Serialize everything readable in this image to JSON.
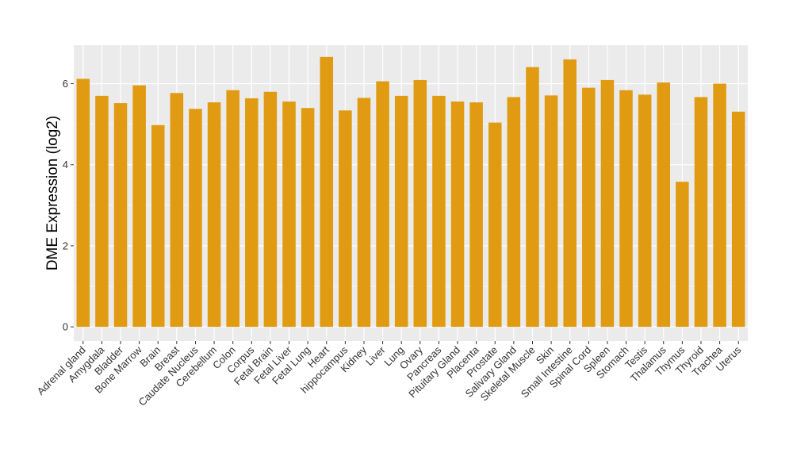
{
  "chart_data": {
    "type": "bar",
    "title": "",
    "xlabel": "",
    "ylabel": "DME Expression (log2)",
    "ylim": [
      -0.35,
      6.95
    ],
    "yticks": [
      0,
      2,
      4,
      6
    ],
    "grid": true,
    "bar_color": "#E09B12",
    "panel_color": "#EBEBEB",
    "grid_color": "#FFFFFF",
    "categories": [
      "Adrenal gland",
      "Amygdala",
      "Bladder",
      "Bone Marrow",
      "Brain",
      "Breast",
      "Caudate Nucleus",
      "Cerebellum",
      "Colon",
      "Corpus",
      "Fetal Brain",
      "Fetal Liver",
      "Fetal Lung",
      "Heart",
      "hippocampus",
      "Kidney",
      "Liver",
      "Lung",
      "Ovary",
      "Pancreas",
      "Pituitary Gland",
      "Placenta",
      "Prostate",
      "Salivary Gland",
      "Skeletal Muscle",
      "Skin",
      "Small Intestine",
      "Spinal Cord",
      "Spleen",
      "Stomach",
      "Testis",
      "Thalamus",
      "Thymus",
      "Thyroid",
      "Trachea",
      "Uterus"
    ],
    "values": [
      6.12,
      5.7,
      5.52,
      5.96,
      4.98,
      5.77,
      5.38,
      5.54,
      5.84,
      5.64,
      5.8,
      5.56,
      5.4,
      6.66,
      5.34,
      5.65,
      6.06,
      5.7,
      6.09,
      5.7,
      5.56,
      5.54,
      5.04,
      5.67,
      6.41,
      5.71,
      6.6,
      5.9,
      6.09,
      5.84,
      5.73,
      6.03,
      3.58,
      5.67,
      6.0,
      5.31
    ]
  }
}
